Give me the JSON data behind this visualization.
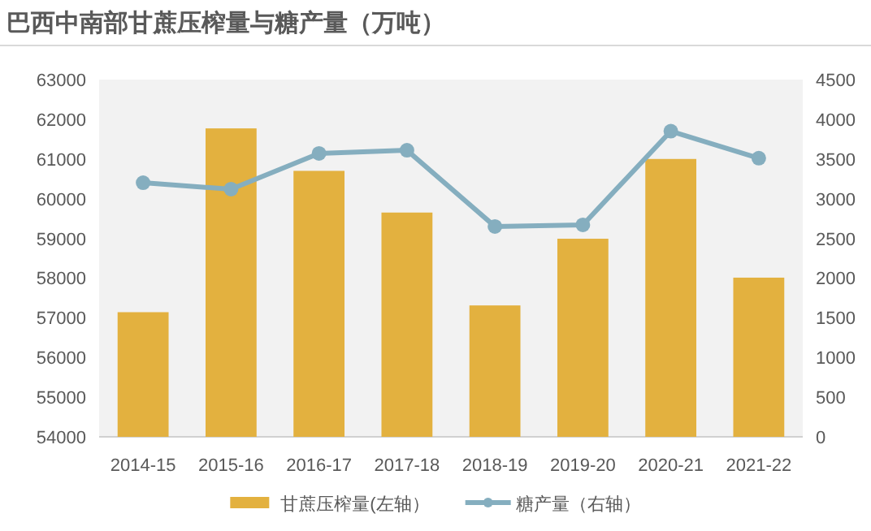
{
  "chart_data": {
    "type": "bar",
    "title": "巴西中南部甘蔗压榨量与糖产量（万吨）",
    "categories": [
      "2014-15",
      "2015-16",
      "2016-17",
      "2017-18",
      "2018-19",
      "2019-20",
      "2020-21",
      "2021-22"
    ],
    "series": [
      {
        "name": "甘蔗压榨量(左轴）",
        "color": "#e3b13f",
        "values": [
          57140,
          61770,
          60700,
          59650,
          57310,
          58990,
          61000,
          58010
        ]
      },
      {
        "name": "糖产量（右轴）",
        "type": "line",
        "axis": "y2",
        "color": "#85aebf",
        "values": [
          3200,
          3120,
          3570,
          3610,
          2650,
          2670,
          3850,
          3510
        ]
      }
    ],
    "ylim": [
      54000,
      63000
    ],
    "yticks": [
      54000,
      55000,
      56000,
      57000,
      58000,
      59000,
      60000,
      61000,
      62000,
      63000
    ],
    "y2lim": [
      0,
      4500
    ],
    "y2ticks": [
      0,
      500,
      1000,
      1500,
      2000,
      2500,
      3000,
      3500,
      4000,
      4500
    ],
    "legend": "bottom",
    "marker": "circle",
    "grid": false
  }
}
